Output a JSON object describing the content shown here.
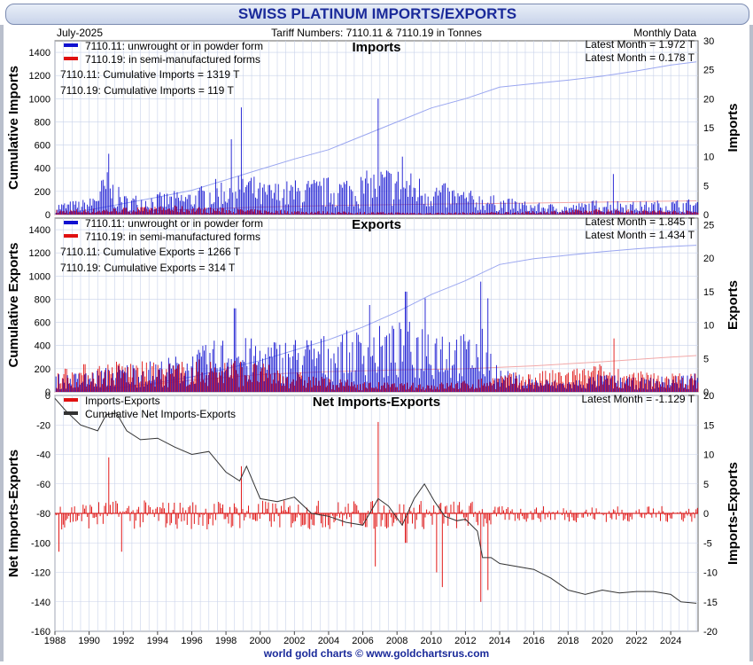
{
  "header": {
    "title": "SWISS PLATINUM IMPORTS/EXPORTS",
    "date": "July-2025",
    "tariff": "Tariff Numbers: 7110.11 & 7110.19 in Tonnes",
    "frequency": "Monthly Data"
  },
  "footer": {
    "credit": "world gold charts © www.goldchartsrus.com"
  },
  "colors": {
    "unwrought": "#1010d0",
    "semi": "#e01010",
    "net_line": "#333333",
    "grid": "#c8d2ea"
  },
  "x_axis": {
    "ticks": [
      "1988",
      "1990",
      "1992",
      "1994",
      "1996",
      "1998",
      "2000",
      "2002",
      "2004",
      "2006",
      "2008",
      "2010",
      "2012",
      "2014",
      "2016",
      "2018",
      "2020",
      "2022",
      "2024"
    ]
  },
  "chart_data": [
    {
      "type": "bar",
      "title": "Imports",
      "ylabel_left": "Cumulative Imports",
      "ylabel_right": "Imports",
      "ylim_left": [
        0,
        1500
      ],
      "yticks_left": [
        "0",
        "200",
        "400",
        "600",
        "800",
        "1000",
        "1200",
        "1400"
      ],
      "ylim_right": [
        0,
        30
      ],
      "yticks_right": [
        "0",
        "5",
        "10",
        "15",
        "20",
        "25",
        "30"
      ],
      "legend": [
        "7110.11: unwrought or in powder form",
        "7110.19: in semi-manufactured forms"
      ],
      "notes": [
        "7110.11: Cumulative Imports = 1319 T",
        "7110.19: Cumulative Imports = 119 T"
      ],
      "latest": [
        "Latest Month = 1.972 T",
        "Latest Month = 0.178 T"
      ],
      "series": [
        {
          "name": "7110.11: unwrought or in powder form",
          "profile": [
            [
              1988,
              1.2
            ],
            [
              1990,
              1.6
            ],
            [
              1991,
              4.5
            ],
            [
              1992,
              2
            ],
            [
              1994,
              2.2
            ],
            [
              1996,
              2.5
            ],
            [
              1998,
              4
            ],
            [
              1999,
              5
            ],
            [
              2000,
              3.2
            ],
            [
              2002,
              3.5
            ],
            [
              2004,
              3.8
            ],
            [
              2006,
              4.2
            ],
            [
              2007,
              5
            ],
            [
              2008,
              4.8
            ],
            [
              2010,
              3.5
            ],
            [
              2012,
              2.5
            ],
            [
              2014,
              1.8
            ],
            [
              2016,
              1.2
            ],
            [
              2018,
              1
            ],
            [
              2020,
              1.6
            ],
            [
              2022,
              1.3
            ],
            [
              2024,
              1.5
            ],
            [
              2025.5,
              1.6
            ]
          ],
          "spikes": [
            [
              1991.1,
              10.5
            ],
            [
              1998.3,
              13
            ],
            [
              1998.9,
              18.5
            ],
            [
              2006.9,
              20
            ],
            [
              2008.3,
              10
            ],
            [
              2020.6,
              7
            ]
          ]
        },
        {
          "name": "7110.19: in semi-manufactured forms",
          "profile": [
            [
              1988,
              0.5
            ],
            [
              1990,
              0.6
            ],
            [
              1995,
              0.9
            ],
            [
              2000,
              0.5
            ],
            [
              2005,
              0.3
            ],
            [
              2010,
              0.2
            ],
            [
              2015,
              0.3
            ],
            [
              2020,
              0.6
            ],
            [
              2025.5,
              0.4
            ]
          ],
          "spikes": []
        }
      ],
      "cumulative": [
        {
          "name": "7110.11: Cumulative Imports",
          "points": [
            [
              1988,
              0
            ],
            [
              1990,
              40
            ],
            [
              1992,
              95
            ],
            [
              1994,
              150
            ],
            [
              1996,
              210
            ],
            [
              1998,
              300
            ],
            [
              2000,
              390
            ],
            [
              2002,
              480
            ],
            [
              2004,
              560
            ],
            [
              2006,
              680
            ],
            [
              2008,
              800
            ],
            [
              2010,
              920
            ],
            [
              2012,
              1000
            ],
            [
              2014,
              1100
            ],
            [
              2016,
              1130
            ],
            [
              2018,
              1160
            ],
            [
              2020,
              1195
            ],
            [
              2022,
              1240
            ],
            [
              2024,
              1290
            ],
            [
              2025.5,
              1319
            ]
          ]
        },
        {
          "name": "7110.19: Cumulative Imports",
          "points": [
            [
              1988,
              0
            ],
            [
              1995,
              40
            ],
            [
              2000,
              65
            ],
            [
              2005,
              80
            ],
            [
              2010,
              90
            ],
            [
              2015,
              97
            ],
            [
              2020,
              108
            ],
            [
              2025.5,
              119
            ]
          ]
        }
      ]
    },
    {
      "type": "bar",
      "title": "Exports",
      "ylabel_left": "Cumulative Exports",
      "ylabel_right": "Exports",
      "ylim_left": [
        0,
        1500
      ],
      "yticks_left": [
        "0",
        "200",
        "400",
        "600",
        "800",
        "1000",
        "1200",
        "1400"
      ],
      "ylim_right": [
        0,
        26
      ],
      "yticks_right": [
        "0",
        "5",
        "10",
        "15",
        "20",
        "25"
      ],
      "legend": [
        "7110.11: unwrought or in powder form",
        "7110.19: in semi-manufactured forms"
      ],
      "notes": [
        "7110.11: Cumulative Exports = 1266 T",
        "7110.19: Cumulative Exports = 314 T"
      ],
      "latest": [
        "Latest Month = 1.845 T",
        "Latest Month = 1.434 T"
      ],
      "series": [
        {
          "name": "7110.11: unwrought or in powder form",
          "profile": [
            [
              1988,
              1.5
            ],
            [
              1990,
              1.8
            ],
            [
              1992,
              2.5
            ],
            [
              1994,
              2.8
            ],
            [
              1996,
              3.5
            ],
            [
              1998,
              5
            ],
            [
              2000,
              4.5
            ],
            [
              2002,
              4.8
            ],
            [
              2004,
              5
            ],
            [
              2006,
              5.5
            ],
            [
              2008,
              6
            ],
            [
              2010,
              6.5
            ],
            [
              2012,
              5
            ],
            [
              2013,
              5.5
            ],
            [
              2014,
              2
            ],
            [
              2016,
              1.2
            ],
            [
              2018,
              1
            ],
            [
              2020,
              1.6
            ],
            [
              2022,
              1.2
            ],
            [
              2024,
              1.4
            ],
            [
              2025.5,
              1.8
            ]
          ],
          "spikes": [
            [
              1998.5,
              12.5
            ],
            [
              2006.4,
              13
            ],
            [
              2008.5,
              15
            ],
            [
              2009.6,
              14
            ],
            [
              2010.3,
              8
            ],
            [
              2012.9,
              16.5
            ],
            [
              2013.3,
              14
            ]
          ]
        },
        {
          "name": "7110.19: in semi-manufactured forms",
          "profile": [
            [
              1988,
              2.2
            ],
            [
              1990,
              2.5
            ],
            [
              1992,
              2.8
            ],
            [
              1994,
              2.5
            ],
            [
              1996,
              2.8
            ],
            [
              1998,
              3
            ],
            [
              2000,
              2.5
            ],
            [
              2002,
              1.8
            ],
            [
              2004,
              1.2
            ],
            [
              2006,
              0.9
            ],
            [
              2008,
              0.8
            ],
            [
              2010,
              0.8
            ],
            [
              2012,
              1
            ],
            [
              2014,
              1.6
            ],
            [
              2016,
              1.8
            ],
            [
              2018,
              2
            ],
            [
              2020,
              2.5
            ],
            [
              2022,
              1.8
            ],
            [
              2024,
              1.7
            ],
            [
              2025.5,
              1.6
            ]
          ],
          "spikes": [
            [
              2020.6,
              8
            ]
          ]
        }
      ],
      "cumulative": [
        {
          "name": "7110.11: Cumulative Exports",
          "points": [
            [
              1988,
              0
            ],
            [
              1990,
              10
            ],
            [
              1992,
              40
            ],
            [
              1994,
              80
            ],
            [
              1996,
              130
            ],
            [
              1998,
              200
            ],
            [
              2000,
              270
            ],
            [
              2002,
              360
            ],
            [
              2004,
              450
            ],
            [
              2006,
              560
            ],
            [
              2008,
              690
            ],
            [
              2010,
              840
            ],
            [
              2012,
              960
            ],
            [
              2014,
              1100
            ],
            [
              2016,
              1150
            ],
            [
              2018,
              1180
            ],
            [
              2020,
              1210
            ],
            [
              2022,
              1235
            ],
            [
              2024,
              1255
            ],
            [
              2025.5,
              1266
            ]
          ]
        },
        {
          "name": "7110.19: Cumulative Exports",
          "points": [
            [
              1988,
              0
            ],
            [
              1992,
              40
            ],
            [
              1996,
              100
            ],
            [
              2000,
              150
            ],
            [
              2004,
              175
            ],
            [
              2008,
              190
            ],
            [
              2012,
              200
            ],
            [
              2016,
              225
            ],
            [
              2020,
              260
            ],
            [
              2024,
              300
            ],
            [
              2025.5,
              314
            ]
          ]
        }
      ]
    },
    {
      "type": "bar",
      "title": "Net Imports-Exports",
      "ylabel_left": "Net Imports-Exports",
      "ylabel_right": "Imports-Exports",
      "ylim_left": [
        -160,
        0
      ],
      "yticks_left": [
        "0",
        "-20",
        "-40",
        "-60",
        "-80",
        "-100",
        "-120",
        "-140",
        "-160"
      ],
      "ylim_right": [
        -20,
        20
      ],
      "yticks_right": [
        "20",
        "15",
        "10",
        "5",
        "0",
        "-5",
        "-10",
        "-15",
        "-20"
      ],
      "legend": [
        "Imports-Exports",
        "Cumulative Net Imports-Exports"
      ],
      "latest": [
        "Latest Month = -1.129 T"
      ],
      "spikes": [
        [
          1988.2,
          -6.5
        ],
        [
          1991.1,
          9.5
        ],
        [
          1991.9,
          -6.5
        ],
        [
          1998.9,
          8
        ],
        [
          2006.7,
          -9
        ],
        [
          2006.9,
          15.5
        ],
        [
          2008.5,
          -5
        ],
        [
          2010.3,
          -10
        ],
        [
          2010.6,
          -12.5
        ],
        [
          2012.9,
          -15
        ],
        [
          2013.3,
          -13
        ]
      ],
      "cumulative": {
        "name": "Cumulative Net Imports-Exports",
        "points": [
          [
            1988,
            -2
          ],
          [
            1988.6,
            -10
          ],
          [
            1989.5,
            -20
          ],
          [
            1990.5,
            -24
          ],
          [
            1991,
            -13
          ],
          [
            1991.6,
            -12
          ],
          [
            1992.2,
            -24
          ],
          [
            1993,
            -30
          ],
          [
            1994,
            -29
          ],
          [
            1995,
            -35
          ],
          [
            1996,
            -40
          ],
          [
            1997,
            -38
          ],
          [
            1998,
            -52
          ],
          [
            1998.8,
            -58
          ],
          [
            1999.2,
            -48
          ],
          [
            2000,
            -70
          ],
          [
            2001,
            -72
          ],
          [
            2002,
            -69
          ],
          [
            2003,
            -80
          ],
          [
            2004,
            -82
          ],
          [
            2005,
            -86
          ],
          [
            2006,
            -88
          ],
          [
            2006.9,
            -70
          ],
          [
            2007.5,
            -75
          ],
          [
            2008.3,
            -88
          ],
          [
            2009,
            -70
          ],
          [
            2009.6,
            -60
          ],
          [
            2010.2,
            -72
          ],
          [
            2010.8,
            -82
          ],
          [
            2011.5,
            -85
          ],
          [
            2012,
            -84
          ],
          [
            2012.7,
            -92
          ],
          [
            2013,
            -110
          ],
          [
            2013.5,
            -110
          ],
          [
            2014,
            -114
          ],
          [
            2016,
            -118
          ],
          [
            2017,
            -124
          ],
          [
            2018,
            -132
          ],
          [
            2019,
            -135
          ],
          [
            2020,
            -132
          ],
          [
            2021,
            -134
          ],
          [
            2022,
            -133
          ],
          [
            2023,
            -133
          ],
          [
            2024,
            -135
          ],
          [
            2024.6,
            -140
          ],
          [
            2025.5,
            -141
          ]
        ]
      }
    }
  ]
}
